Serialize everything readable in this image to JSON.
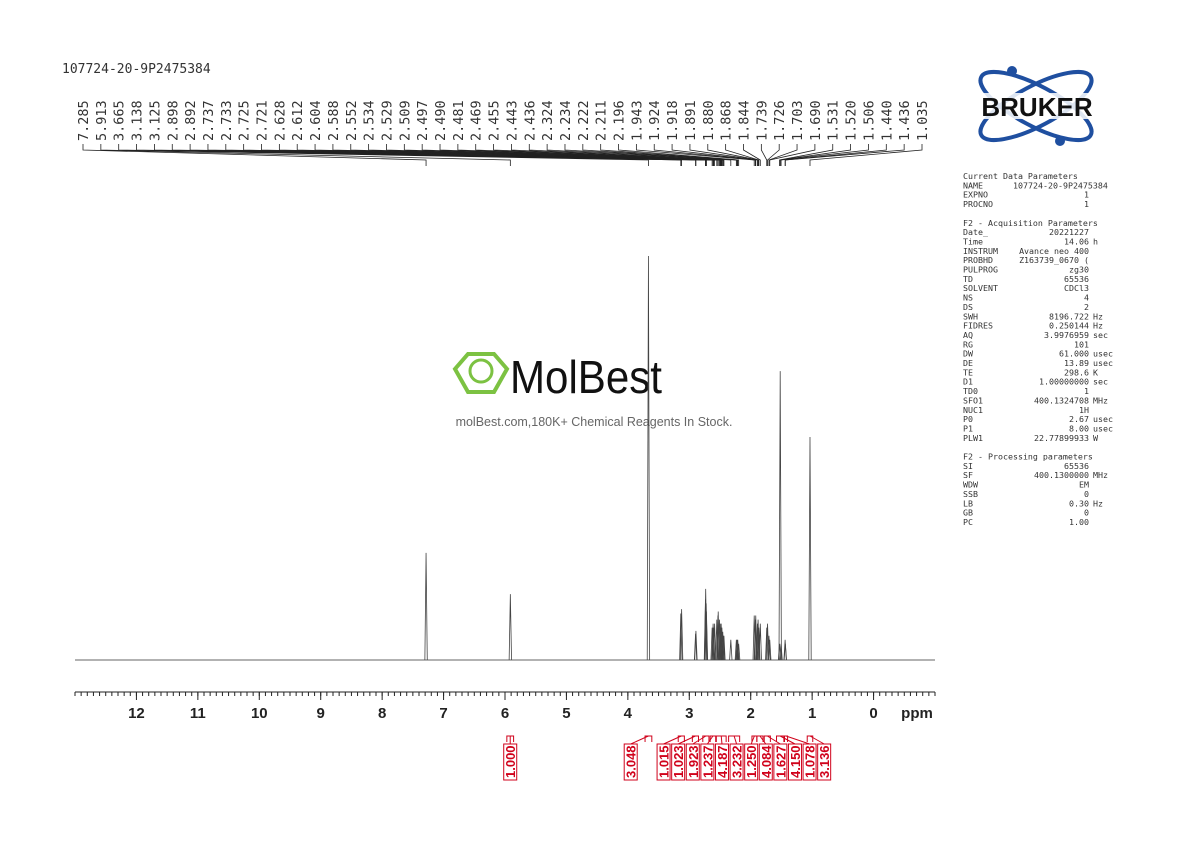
{
  "title": "107724-20-9P2475384",
  "logo": "BRUKER",
  "watermark": {
    "brand": "MolBest",
    "tagline": "molBest.com,180K+ Chemical Reagents In Stock."
  },
  "chart_data": {
    "type": "nmr",
    "xlim": [
      13,
      -1
    ],
    "xticks": [
      12,
      11,
      10,
      9,
      8,
      7,
      6,
      5,
      4,
      3,
      2,
      1,
      0
    ],
    "xlabel": "ppm",
    "ylim": [
      0,
      100
    ],
    "color": "#444444",
    "integral_color": "#d0021b",
    "peaks": [
      {
        "ppm": 7.285,
        "intensity": 26.5
      },
      {
        "ppm": 5.913,
        "intensity": 16.3
      },
      {
        "ppm": 3.665,
        "intensity": 100
      },
      {
        "ppm": 3.138,
        "intensity": 11.5
      },
      {
        "ppm": 3.125,
        "intensity": 12.6
      },
      {
        "ppm": 2.898,
        "intensity": 6.5
      },
      {
        "ppm": 2.892,
        "intensity": 7.2
      },
      {
        "ppm": 2.737,
        "intensity": 15
      },
      {
        "ppm": 2.733,
        "intensity": 17.6
      },
      {
        "ppm": 2.725,
        "intensity": 14
      },
      {
        "ppm": 2.721,
        "intensity": 12
      },
      {
        "ppm": 2.628,
        "intensity": 8
      },
      {
        "ppm": 2.612,
        "intensity": 9
      },
      {
        "ppm": 2.604,
        "intensity": 8
      },
      {
        "ppm": 2.588,
        "intensity": 9
      },
      {
        "ppm": 2.552,
        "intensity": 10
      },
      {
        "ppm": 2.534,
        "intensity": 11
      },
      {
        "ppm": 2.529,
        "intensity": 12
      },
      {
        "ppm": 2.509,
        "intensity": 10
      },
      {
        "ppm": 2.497,
        "intensity": 9
      },
      {
        "ppm": 2.49,
        "label": "2.490",
        "intensity": 8
      },
      {
        "ppm": 2.481,
        "intensity": 9
      },
      {
        "ppm": 2.469,
        "intensity": 8
      },
      {
        "ppm": 2.455,
        "intensity": 7
      },
      {
        "ppm": 2.443,
        "intensity": 6
      },
      {
        "ppm": 2.436,
        "intensity": 6
      },
      {
        "ppm": 2.324,
        "intensity": 5
      },
      {
        "ppm": 2.234,
        "intensity": 5
      },
      {
        "ppm": 2.222,
        "intensity": 5
      },
      {
        "ppm": 2.211,
        "intensity": 5
      },
      {
        "ppm": 2.196,
        "intensity": 4
      },
      {
        "ppm": 1.943,
        "intensity": 11
      },
      {
        "ppm": 1.924,
        "intensity": 10
      },
      {
        "ppm": 1.918,
        "intensity": 11
      },
      {
        "ppm": 1.891,
        "intensity": 9
      },
      {
        "ppm": 1.88,
        "label": "1.880",
        "intensity": 10
      },
      {
        "ppm": 1.868,
        "intensity": 8
      },
      {
        "ppm": 1.844,
        "intensity": 9
      },
      {
        "ppm": 1.739,
        "intensity": 8
      },
      {
        "ppm": 1.726,
        "intensity": 9
      },
      {
        "ppm": 1.703,
        "intensity": 6
      },
      {
        "ppm": 1.69,
        "label": "1.690",
        "intensity": 5
      },
      {
        "ppm": 1.531,
        "intensity": 4
      },
      {
        "ppm": 1.52,
        "label": "1.520",
        "intensity": 71.5
      },
      {
        "ppm": 1.506,
        "intensity": 4
      },
      {
        "ppm": 1.44,
        "label": "1.440",
        "intensity": 5
      },
      {
        "ppm": 1.436,
        "intensity": 4
      },
      {
        "ppm": 1.035,
        "intensity": 55.2
      }
    ],
    "integrals": [
      {
        "value": 1,
        "label": "1.000",
        "range": [
          5.97,
          5.86
        ]
      },
      {
        "value": 3.048,
        "label": "3.048",
        "range": [
          3.72,
          3.61
        ]
      },
      {
        "value": 1.015,
        "label": "1.015",
        "range": [
          3.18,
          3.08
        ]
      },
      {
        "value": 1.023,
        "label": "1.023",
        "range": [
          2.95,
          2.85
        ]
      },
      {
        "value": 1.923,
        "label": "1.923",
        "range": [
          2.78,
          2.68
        ]
      },
      {
        "value": 1.237,
        "label": "1.237",
        "range": [
          2.66,
          2.57
        ]
      },
      {
        "value": 4.187,
        "label": "4.187",
        "range": [
          2.56,
          2.4
        ]
      },
      {
        "value": 3.232,
        "label": "3.232",
        "range": [
          2.36,
          2.18
        ]
      },
      {
        "value": 1.25,
        "label": "1.250",
        "range": [
          1.98,
          1.9
        ]
      },
      {
        "value": 4.084,
        "label": "4.084",
        "range": [
          1.9,
          1.8
        ]
      },
      {
        "value": 1.627,
        "label": "1.627",
        "range": [
          1.78,
          1.68
        ]
      },
      {
        "value": 4.15,
        "label": "4.150",
        "range": [
          1.58,
          1.46
        ]
      },
      {
        "value": 1.078,
        "label": "1.078",
        "range": [
          1.45,
          1.4
        ]
      },
      {
        "value": 3.136,
        "label": "3.136",
        "range": [
          1.08,
          0.99
        ]
      }
    ]
  },
  "parameters": [
    {
      "title": "Current Data Parameters",
      "rows": [
        [
          "NAME",
          "107724-20-9P2475384"
        ],
        [
          "EXPNO",
          "1"
        ],
        [
          "PROCNO",
          "1"
        ]
      ]
    },
    {
      "title": "F2 - Acquisition Parameters",
      "rows": [
        [
          "Date_",
          "20221227"
        ],
        [
          "Time",
          "14.06",
          "h"
        ],
        [
          "INSTRUM",
          "Avance neo 400"
        ],
        [
          "PROBHD",
          "Z163739_0670 ("
        ],
        [
          "PULPROG",
          "zg30"
        ],
        [
          "TD",
          "65536"
        ],
        [
          "SOLVENT",
          "CDCl3"
        ],
        [
          "NS",
          "4"
        ],
        [
          "DS",
          "2"
        ],
        [
          "SWH",
          "8196.722",
          "Hz"
        ],
        [
          "FIDRES",
          "0.250144",
          "Hz"
        ],
        [
          "AQ",
          "3.9976959",
          "sec"
        ],
        [
          "RG",
          "101"
        ],
        [
          "DW",
          "61.000",
          "usec"
        ],
        [
          "DE",
          "13.89",
          "usec"
        ],
        [
          "TE",
          "298.6",
          "K"
        ],
        [
          "D1",
          "1.00000000",
          "sec"
        ],
        [
          "TD0",
          "1"
        ],
        [
          "SFO1",
          "400.1324708",
          "MHz"
        ],
        [
          "NUC1",
          "1H"
        ],
        [
          "P0",
          "2.67",
          "usec"
        ],
        [
          "P1",
          "8.00",
          "usec"
        ],
        [
          "PLW1",
          "22.77899933",
          "W"
        ]
      ]
    },
    {
      "title": "F2 - Processing parameters",
      "rows": [
        [
          "SI",
          "65536"
        ],
        [
          "SF",
          "400.1300000",
          "MHz"
        ],
        [
          "WDW",
          "EM"
        ],
        [
          "SSB",
          "0"
        ],
        [
          "LB",
          "0.30",
          "Hz"
        ],
        [
          "GB",
          "0"
        ],
        [
          "PC",
          "1.00"
        ]
      ]
    }
  ]
}
